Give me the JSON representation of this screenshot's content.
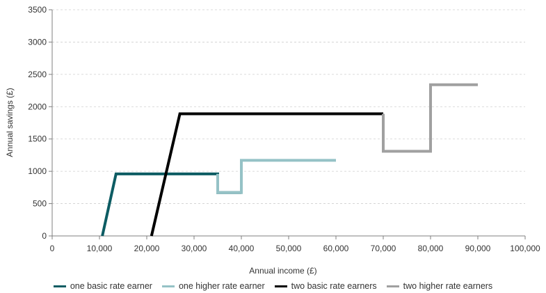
{
  "chart_data": {
    "type": "line",
    "xlabel": "Annual income (£)",
    "ylabel": "Annual savings (£)",
    "xlim": [
      0,
      100000
    ],
    "ylim": [
      0,
      3500
    ],
    "x_ticks": [
      0,
      10000,
      20000,
      30000,
      40000,
      50000,
      60000,
      70000,
      80000,
      90000,
      100000
    ],
    "x_tick_labels": [
      "0",
      "10,000",
      "20,000",
      "30,000",
      "40,000",
      "50,000",
      "60,000",
      "70,000",
      "80,000",
      "90,000",
      "100,000"
    ],
    "y_ticks": [
      0,
      500,
      1000,
      1500,
      2000,
      2500,
      3000,
      3500
    ],
    "y_tick_labels": [
      "0",
      "500",
      "1000",
      "1500",
      "2000",
      "2500",
      "3000",
      "3500"
    ],
    "grid": true,
    "legend_position": "bottom",
    "series": [
      {
        "name": "one basic rate earner",
        "color": "#0d5c63",
        "points": [
          [
            10600,
            0
          ],
          [
            13500,
            960
          ],
          [
            35000,
            960
          ],
          [
            35000,
            670
          ],
          [
            40000,
            670
          ]
        ]
      },
      {
        "name": "one higher rate earner",
        "color": "#95c2c6",
        "points": [
          [
            35000,
            960
          ],
          [
            35000,
            670
          ],
          [
            40000,
            670
          ],
          [
            40000,
            1170
          ],
          [
            60000,
            1170
          ]
        ]
      },
      {
        "name": "two basic rate earners",
        "color": "#000000",
        "points": [
          [
            21000,
            0
          ],
          [
            27000,
            1890
          ],
          [
            70000,
            1890
          ]
        ]
      },
      {
        "name": "two higher rate earners",
        "color": "#a0a0a0",
        "points": [
          [
            70000,
            1890
          ],
          [
            70000,
            1310
          ],
          [
            80000,
            1310
          ],
          [
            80000,
            2340
          ],
          [
            90000,
            2340
          ]
        ]
      }
    ]
  }
}
